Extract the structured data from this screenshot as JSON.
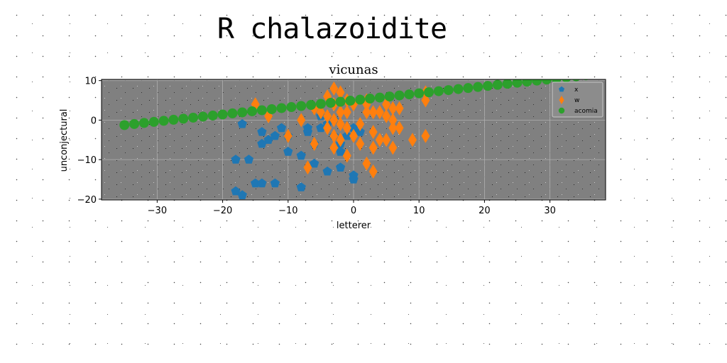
{
  "suptitle": "R chalazoidite",
  "chart_data": {
    "type": "scatter",
    "title": "vicunas",
    "xlabel": "letterer",
    "ylabel": "unconjectural",
    "xlim": [
      -38.5,
      38.5
    ],
    "ylim": [
      -20.2,
      10.3
    ],
    "xticks": [
      -30,
      -20,
      -10,
      0,
      10,
      20,
      30
    ],
    "yticks": [
      -20,
      -10,
      0,
      10
    ],
    "grid": true,
    "legend_position": "top-right",
    "colors": {
      "plot_background": "#808080",
      "grid": "#b0b0b0"
    },
    "series": [
      {
        "name": "x",
        "marker": "pentagon",
        "color": "#1f77b4",
        "points": [
          [
            -17,
            -1
          ],
          [
            -14,
            -3
          ],
          [
            -13,
            -5
          ],
          [
            -12,
            -4
          ],
          [
            -14,
            -6
          ],
          [
            -11,
            -2
          ],
          [
            -10,
            -4
          ],
          [
            -10,
            -8
          ],
          [
            -8,
            -9
          ],
          [
            -7,
            -3
          ],
          [
            -6,
            -11
          ],
          [
            -6,
            -6
          ],
          [
            -7,
            -2
          ],
          [
            -5,
            -2
          ],
          [
            -3,
            -4
          ],
          [
            -2,
            -6
          ],
          [
            -1,
            -4
          ],
          [
            0,
            -2
          ],
          [
            1,
            -3
          ],
          [
            -2,
            -8
          ],
          [
            -4,
            -13
          ],
          [
            -2,
            -12
          ],
          [
            0,
            -14
          ],
          [
            0,
            -15
          ],
          [
            -18,
            -10
          ],
          [
            -16,
            -10
          ],
          [
            -18,
            -18
          ],
          [
            -17,
            -19
          ],
          [
            -15,
            -16
          ],
          [
            -14,
            -16
          ],
          [
            -12,
            -16
          ],
          [
            -8,
            -17
          ],
          [
            -5,
            1
          ],
          [
            -3,
            0
          ],
          [
            -4,
            -1
          ]
        ]
      },
      {
        "name": "w",
        "marker": "diamond",
        "color": "#ff7f0e",
        "points": [
          [
            -3,
            8
          ],
          [
            -2,
            7
          ],
          [
            -4,
            6
          ],
          [
            -3,
            4
          ],
          [
            -1,
            5
          ],
          [
            0,
            4
          ],
          [
            -15,
            4
          ],
          [
            -13,
            1
          ],
          [
            -6,
            3
          ],
          [
            -8,
            0
          ],
          [
            -5,
            2
          ],
          [
            -4,
            1
          ],
          [
            -2,
            2
          ],
          [
            -1,
            2
          ],
          [
            -3,
            0
          ],
          [
            -2,
            -1
          ],
          [
            -4,
            -2
          ],
          [
            -3,
            -4
          ],
          [
            -2,
            -5
          ],
          [
            -3,
            -7
          ],
          [
            -6,
            -6
          ],
          [
            -7,
            -12
          ],
          [
            -10,
            -4
          ],
          [
            -1,
            -2
          ],
          [
            0,
            -4
          ],
          [
            1,
            -1
          ],
          [
            2,
            2
          ],
          [
            2,
            4
          ],
          [
            3,
            2
          ],
          [
            4,
            2
          ],
          [
            5,
            1
          ],
          [
            6,
            0
          ],
          [
            5,
            4
          ],
          [
            6,
            3
          ],
          [
            7,
            3
          ],
          [
            6,
            -2
          ],
          [
            7,
            -2
          ],
          [
            3,
            -3
          ],
          [
            4,
            -5
          ],
          [
            5,
            -5
          ],
          [
            3,
            -7
          ],
          [
            6,
            -7
          ],
          [
            1,
            -6
          ],
          [
            2,
            -11
          ],
          [
            3,
            -13
          ],
          [
            9,
            -5
          ],
          [
            11,
            -4
          ],
          [
            11,
            5
          ],
          [
            11,
            7
          ],
          [
            -1,
            -9
          ],
          [
            2,
            5
          ]
        ]
      },
      {
        "name": "acomia",
        "marker": "circle",
        "color": "#2ca02c",
        "points": [
          [
            -35,
            -1.25
          ],
          [
            -33.5,
            -0.98
          ],
          [
            -32,
            -0.71
          ],
          [
            -30.5,
            -0.45
          ],
          [
            -29,
            -0.18
          ],
          [
            -27.5,
            0.09
          ],
          [
            -26,
            0.36
          ],
          [
            -24.5,
            0.62
          ],
          [
            -23,
            0.89
          ],
          [
            -21.5,
            1.16
          ],
          [
            -20,
            1.43
          ],
          [
            -18.5,
            1.7
          ],
          [
            -17,
            1.96
          ],
          [
            -15.5,
            2.23
          ],
          [
            -14,
            2.5
          ],
          [
            -12.5,
            2.77
          ],
          [
            -11,
            3.04
          ],
          [
            -9.5,
            3.3
          ],
          [
            -8,
            3.57
          ],
          [
            -6.5,
            3.84
          ],
          [
            -5,
            4.11
          ],
          [
            -3.5,
            4.38
          ],
          [
            -2,
            4.64
          ],
          [
            -0.5,
            4.91
          ],
          [
            1,
            5.18
          ],
          [
            2.5,
            5.45
          ],
          [
            4,
            5.71
          ],
          [
            5.5,
            5.98
          ],
          [
            7,
            6.25
          ],
          [
            8.5,
            6.52
          ],
          [
            10,
            6.79
          ],
          [
            11.5,
            7.05
          ],
          [
            13,
            7.32
          ],
          [
            14.5,
            7.59
          ],
          [
            16,
            7.86
          ],
          [
            17.5,
            8.12
          ],
          [
            19,
            8.39
          ],
          [
            20.5,
            8.66
          ],
          [
            22,
            8.93
          ],
          [
            23.5,
            9.2
          ],
          [
            25,
            9.46
          ],
          [
            26.5,
            9.73
          ],
          [
            28,
            10.0
          ],
          [
            29.5,
            10.27
          ],
          [
            31,
            10.54
          ],
          [
            32.5,
            10.8
          ],
          [
            34,
            11.07
          ],
          [
            35.5,
            11.34
          ]
        ]
      }
    ]
  }
}
